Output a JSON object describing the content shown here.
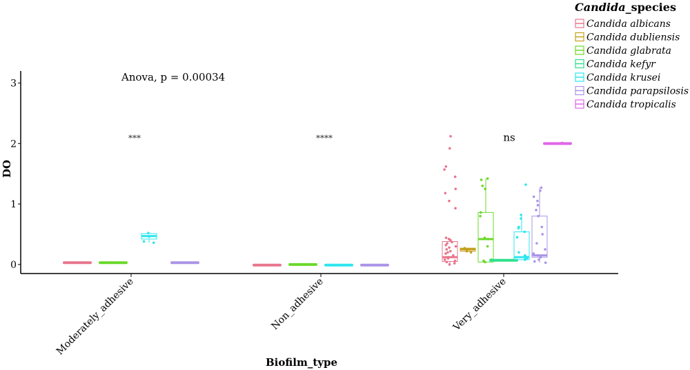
{
  "chart_data": {
    "type": "box",
    "xlabel": "Biofilm_type",
    "ylabel": "DO",
    "categories": [
      "Moderately_adhesive",
      "Non_adhesive",
      "Very_adhesive"
    ],
    "ylim": [
      -0.15,
      3.2
    ],
    "yticks": [
      0,
      1,
      2,
      3
    ],
    "yticks_text": [
      "0",
      "1",
      "2",
      "3"
    ],
    "grid": false,
    "legend": {
      "title_italic": "Candida",
      "title_rest": "_species",
      "position": "top-right"
    },
    "annotation": "Anova, p = 0.00034",
    "significance": [
      "***",
      "****",
      "ns"
    ],
    "species": [
      {
        "name": "Candida albicans",
        "color": "#E8758C"
      },
      {
        "name": "Candida dubliensis",
        "color": "#C4A020"
      },
      {
        "name": "Candida glabrata",
        "color": "#6BD82A"
      },
      {
        "name": "Candida kefyr",
        "color": "#2FE08C"
      },
      {
        "name": "Candida krusei",
        "color": "#2EE6EE"
      },
      {
        "name": "Candida parapsilosis",
        "color": "#A995E6"
      },
      {
        "name": "Candida tropicalis",
        "color": "#E066E8"
      }
    ],
    "boxes": [
      {
        "category": "Moderately_adhesive",
        "species": "Candida albicans",
        "offset": -3,
        "q1": 0.02,
        "median": 0.03,
        "q3": 0.04,
        "whisker_low": 0.02,
        "whisker_high": 0.04,
        "points": [
          0.03,
          0.03
        ]
      },
      {
        "category": "Moderately_adhesive",
        "species": "Candida glabrata",
        "offset": -1,
        "q1": 0.02,
        "median": 0.03,
        "q3": 0.04,
        "whisker_low": 0.02,
        "whisker_high": 0.04,
        "points": [
          0.03,
          0.03
        ]
      },
      {
        "category": "Moderately_adhesive",
        "species": "Candida krusei",
        "offset": 1,
        "q1": 0.42,
        "median": 0.47,
        "q3": 0.51,
        "whisker_low": 0.36,
        "whisker_high": 0.52,
        "points": [
          0.52,
          0.46,
          0.38,
          0.36
        ]
      },
      {
        "category": "Moderately_adhesive",
        "species": "Candida parapsilosis",
        "offset": 3,
        "q1": 0.02,
        "median": 0.03,
        "q3": 0.04,
        "whisker_low": 0.02,
        "whisker_high": 0.04,
        "points": [
          0.03,
          0.03
        ]
      },
      {
        "category": "Non_adhesive",
        "species": "Candida albicans",
        "offset": -3,
        "q1": -0.02,
        "median": -0.01,
        "q3": -0.005,
        "whisker_low": -0.02,
        "whisker_high": -0.005,
        "points": [
          -0.01,
          -0.01
        ]
      },
      {
        "category": "Non_adhesive",
        "species": "Candida glabrata",
        "offset": -1,
        "q1": -0.01,
        "median": 0.0,
        "q3": 0.005,
        "whisker_low": -0.01,
        "whisker_high": 0.005,
        "points": [
          0.0,
          0.0
        ]
      },
      {
        "category": "Non_adhesive",
        "species": "Candida krusei",
        "offset": 1,
        "q1": -0.02,
        "median": -0.01,
        "q3": -0.005,
        "whisker_low": -0.02,
        "whisker_high": -0.005,
        "points": [
          -0.01,
          -0.01
        ]
      },
      {
        "category": "Non_adhesive",
        "species": "Candida parapsilosis",
        "offset": 3,
        "q1": -0.02,
        "median": -0.01,
        "q3": -0.005,
        "whisker_low": -0.02,
        "whisker_high": -0.005,
        "points": [
          -0.01,
          -0.01
        ]
      },
      {
        "category": "Very_adhesive",
        "species": "Candida albicans",
        "offset": -3,
        "q1": 0.05,
        "median": 0.12,
        "q3": 0.38,
        "whisker_low": 0.0,
        "whisker_high": 0.44,
        "points": [
          2.12,
          1.92,
          1.62,
          1.57,
          1.45,
          1.25,
          1.18,
          1.05,
          0.93,
          0.44,
          0.42,
          0.4,
          0.37,
          0.35,
          0.32,
          0.3,
          0.28,
          0.25,
          0.22,
          0.2,
          0.18,
          0.15,
          0.12,
          0.1,
          0.08,
          0.06,
          0.04,
          0.02,
          0.0
        ]
      },
      {
        "category": "Very_adhesive",
        "species": "Candida dubliensis",
        "offset": -2,
        "q1": 0.22,
        "median": 0.25,
        "q3": 0.27,
        "whisker_low": 0.2,
        "whisker_high": 0.27,
        "points": [
          0.27,
          0.25,
          0.22,
          0.2
        ]
      },
      {
        "category": "Very_adhesive",
        "species": "Candida glabrata",
        "offset": -1,
        "q1": 0.04,
        "median": 0.42,
        "q3": 0.86,
        "whisker_low": 0.02,
        "whisker_high": 1.42,
        "points": [
          1.42,
          1.4,
          1.3,
          1.25,
          0.86,
          0.8,
          0.44,
          0.42,
          0.3,
          0.08,
          0.06,
          0.04
        ]
      },
      {
        "category": "Very_adhesive",
        "species": "Candida kefyr",
        "offset": 0,
        "q1": 0.06,
        "median": 0.07,
        "q3": 0.08,
        "whisker_low": 0.06,
        "whisker_high": 0.08,
        "points": [
          0.07,
          0.07
        ]
      },
      {
        "category": "Very_adhesive",
        "species": "Candida krusei",
        "offset": 1,
        "q1": 0.08,
        "median": 0.12,
        "q3": 0.54,
        "whisker_low": 0.07,
        "whisker_high": 0.82,
        "points": [
          1.32,
          0.82,
          0.76,
          0.62,
          0.6,
          0.54,
          0.45,
          0.2,
          0.15,
          0.13,
          0.12,
          0.1,
          0.09,
          0.08
        ]
      },
      {
        "category": "Very_adhesive",
        "species": "Candida parapsilosis",
        "offset": 2,
        "q1": 0.12,
        "median": 0.15,
        "q3": 0.8,
        "whisker_low": 0.03,
        "whisker_high": 1.27,
        "points": [
          1.27,
          1.22,
          1.12,
          1.05,
          0.98,
          0.9,
          0.8,
          0.62,
          0.5,
          0.35,
          0.25,
          0.18,
          0.15,
          0.12,
          0.08,
          0.05,
          0.03
        ]
      },
      {
        "category": "Very_adhesive",
        "species": "Candida tropicalis",
        "offset": 3,
        "q1": 1.99,
        "median": 2.0,
        "q3": 2.01,
        "whisker_low": 1.99,
        "whisker_high": 2.01,
        "points": [
          2.0,
          2.01
        ]
      }
    ]
  }
}
